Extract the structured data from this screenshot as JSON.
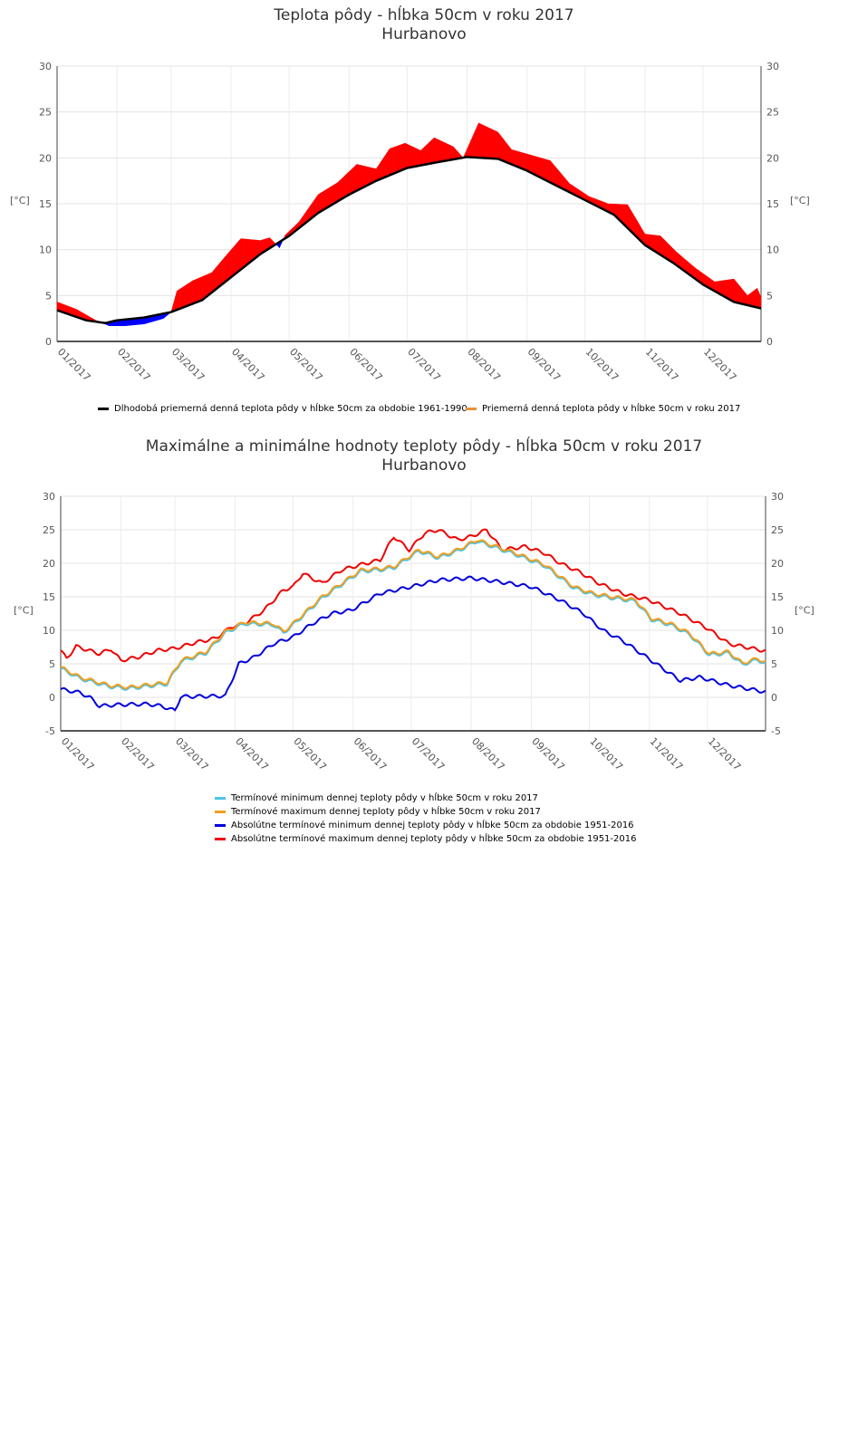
{
  "chart_data": [
    {
      "type": "area",
      "title": "Teplota pôdy - hĺbka 50cm v roku 2017",
      "subtitle": "Hurbanovo",
      "ylabel": "[°C]",
      "ylim": [
        0,
        30
      ],
      "yticks": [
        0,
        5,
        10,
        15,
        20,
        25,
        30
      ],
      "xticks": [
        "01/2017",
        "02/2017",
        "03/2017",
        "04/2017",
        "05/2017",
        "06/2017",
        "07/2017",
        "08/2017",
        "09/2017",
        "10/2017",
        "11/2017",
        "12/2017"
      ],
      "legend": [
        "Dlhodobá priemerná denná teplota pôdy v hĺbke 50cm za obdobie 1961-1990",
        "Priemerná denná teplota pôdy v hĺbke 50cm v roku 2017"
      ],
      "colors": {
        "normal": "#000000",
        "actual": "#e8923a",
        "above": "#ff0000",
        "below": "#0000ff"
      },
      "series": [
        {
          "name": "normal",
          "x": [
            0,
            15,
            25,
            31,
            45,
            59,
            75,
            90,
            105,
            120,
            135,
            151,
            165,
            181,
            196,
            212,
            228,
            243,
            258,
            273,
            288,
            304,
            319,
            334,
            350,
            364
          ],
          "y": [
            3.4,
            2.3,
            2.0,
            2.3,
            2.6,
            3.2,
            4.5,
            7,
            9.5,
            11.5,
            14,
            16,
            17.5,
            18.9,
            19.5,
            20.1,
            19.9,
            18.6,
            17,
            15.4,
            13.8,
            10.5,
            8.5,
            6.2,
            4.3,
            3.6
          ]
        },
        {
          "name": "actual",
          "x": [
            0,
            10,
            20,
            27,
            35,
            45,
            55,
            59,
            62,
            70,
            80,
            88,
            95,
            105,
            110,
            115,
            118,
            125,
            135,
            145,
            155,
            165,
            172,
            180,
            188,
            195,
            205,
            210,
            218,
            228,
            235,
            245,
            255,
            265,
            275,
            285,
            295,
            304,
            312,
            320,
            330,
            340,
            350,
            357,
            362,
            364
          ],
          "y": [
            4.3,
            3.5,
            2.3,
            1.7,
            1.7,
            1.9,
            2.5,
            3.2,
            5.5,
            6.6,
            7.5,
            9.5,
            11.2,
            11,
            11.3,
            10.2,
            11.6,
            13,
            16,
            17.3,
            19.3,
            18.8,
            21,
            21.6,
            20.8,
            22.2,
            21.2,
            20,
            23.8,
            22.8,
            20.9,
            20.3,
            19.7,
            17.2,
            15.8,
            15,
            14.9,
            11.7,
            11.5,
            9.8,
            8,
            6.5,
            6.8,
            5,
            5.8,
            4.8
          ]
        }
      ]
    },
    {
      "type": "line",
      "title": "Maximálne a minimálne hodnoty teploty pôdy - hĺbka 50cm v roku 2017",
      "subtitle": "Hurbanovo",
      "ylabel": "[°C]",
      "ylim": [
        -5,
        30
      ],
      "yticks": [
        -5,
        0,
        5,
        10,
        15,
        20,
        25,
        30
      ],
      "xticks": [
        "01/2017",
        "02/2017",
        "03/2017",
        "04/2017",
        "05/2017",
        "06/2017",
        "07/2017",
        "08/2017",
        "09/2017",
        "10/2017",
        "11/2017",
        "12/2017"
      ],
      "series": [
        {
          "name": "Termínové minimum dennej teploty pôdy v hĺbke 50cm v roku 2017",
          "color": "#4dc3e8",
          "offset": -0.2,
          "ref": "tmax"
        },
        {
          "name": "Termínové maximum dennej teploty pôdy v hĺbke 50cm v roku 2017",
          "color": "#f0a020",
          "id": "tmax",
          "x": [
            0,
            10,
            25,
            35,
            55,
            62,
            75,
            85,
            95,
            110,
            115,
            120,
            135,
            145,
            155,
            165,
            172,
            185,
            195,
            205,
            215,
            225,
            235,
            250,
            265,
            275,
            285,
            297,
            305,
            315,
            325,
            335,
            345,
            352,
            360,
            364
          ],
          "y": [
            4.5,
            3,
            1.8,
            1.5,
            2.2,
            5.5,
            6.8,
            9.8,
            11.2,
            11,
            9.8,
            11,
            15,
            17,
            19,
            19.2,
            19.5,
            22,
            21,
            22,
            23.5,
            22.5,
            21.5,
            19.8,
            16.5,
            15.5,
            15,
            14.5,
            11.8,
            11,
            9.5,
            6.5,
            6.8,
            5.1,
            5.8,
            5.2
          ]
        },
        {
          "name": "Absolútne termínové minimum dennej teploty pôdy v hĺbke 50cm za obdobie 1951-2016",
          "color": "#0000dd",
          "x": [
            0,
            10,
            15,
            20,
            30,
            45,
            52,
            59,
            62,
            85,
            92,
            100,
            110,
            120,
            130,
            140,
            150,
            165,
            181,
            195,
            212,
            225,
            243,
            258,
            270,
            280,
            290,
            300,
            310,
            320,
            330,
            345,
            364
          ],
          "y": [
            1.2,
            0.7,
            0,
            -1.3,
            -1.1,
            -1.0,
            -1.3,
            -2,
            0.1,
            0.2,
            5,
            6,
            8,
            9,
            11,
            12.5,
            13,
            15.5,
            16.5,
            17.5,
            17.8,
            17.3,
            16.5,
            14.5,
            12.5,
            10,
            8.5,
            6.5,
            4.5,
            2.5,
            3,
            1.8,
            0.8
          ]
        },
        {
          "name": "Absolútne termínové maximum dennej teploty pôdy v hĺbke 50cm za obdobie 1951-2016",
          "color": "#ee0000",
          "x": [
            0,
            3,
            8,
            20,
            26,
            31,
            40,
            50,
            59,
            70,
            80,
            88,
            95,
            105,
            115,
            120,
            125,
            135,
            145,
            155,
            165,
            172,
            180,
            188,
            195,
            205,
            212,
            220,
            228,
            240,
            250,
            258,
            268,
            278,
            290,
            304,
            320,
            334,
            345,
            364
          ],
          "y": [
            7,
            5.8,
            7.6,
            6.5,
            7.2,
            5.5,
            6,
            7,
            7.3,
            8.2,
            8.8,
            10.5,
            11,
            13,
            16,
            16.5,
            18.5,
            17,
            19,
            19.8,
            20.5,
            24,
            22,
            24.5,
            25,
            23.5,
            24,
            25,
            22,
            22.5,
            21.5,
            20,
            18.7,
            17,
            15.5,
            14.5,
            12.5,
            10.3,
            8,
            6.9
          ]
        }
      ]
    }
  ]
}
